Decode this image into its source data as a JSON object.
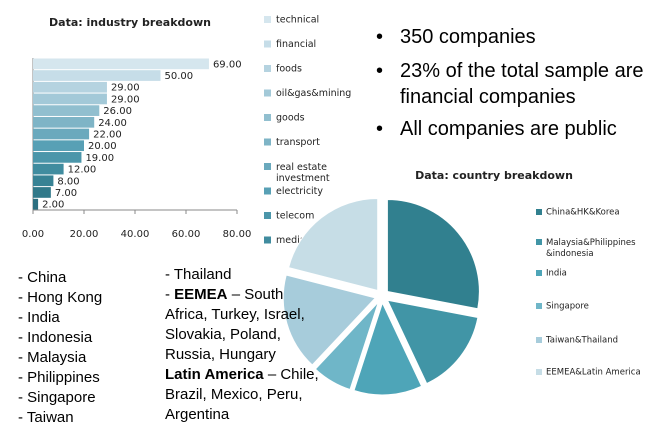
{
  "bullets": [
    "350 companies",
    "23% of the total sample are financial companies",
    "All companies are public"
  ],
  "regions_left": [
    "- China",
    "- Hong Kong",
    "- India",
    "- Indonesia",
    "- Malaysia",
    "- Philippines",
    "- Singapore",
    "- Taiwan"
  ],
  "regions_right": [
    {
      "text": "- Thailand"
    },
    {
      "prefix": "-",
      "bold": "EEMEA",
      "text": "– South Africa, Turkey, Israel, Slovakia, Poland, Russia, Hungary"
    },
    {
      "bold": "Latin America",
      "text": "– Chile, Brazil, Mexico, Peru, Argentina"
    }
  ],
  "chart_data": [
    {
      "type": "hbar",
      "title": "Data: industry breakdown",
      "categories": [
        null,
        null,
        null,
        null,
        null,
        null,
        null,
        null,
        null,
        null,
        null,
        null,
        null
      ],
      "values": [
        69,
        50,
        29,
        29,
        26,
        24,
        22,
        20,
        19,
        12,
        8,
        7,
        2
      ],
      "value_labels": [
        "69.00",
        "50.00",
        "29.00",
        "29.00",
        "26.00",
        "24.00",
        "22.00",
        "20.00",
        "19.00",
        "12.00",
        "8.00",
        "7.00",
        "2.00"
      ],
      "colors": [
        "#d5e6ee",
        "#c6dde8",
        "#b5d3e0",
        "#a3c9d8",
        "#91bfcf",
        "#7eb4c6",
        "#6aa9bd",
        "#58a0b5",
        "#4b96aa",
        "#408c9f",
        "#378294",
        "#31798a",
        "#2c6f80"
      ],
      "xlim": [
        0,
        80
      ],
      "xticks": [
        {
          "value": 0,
          "label": "0.00"
        },
        {
          "value": 20,
          "label": "20.00"
        },
        {
          "value": 40,
          "label": "40.00"
        },
        {
          "value": 60,
          "label": "60.00"
        },
        {
          "value": 80,
          "label": "80.00"
        }
      ],
      "legend": [
        "technical",
        "financial",
        "foods",
        "oil&gas&mining",
        "goods",
        "transport",
        "real estate investment",
        "electricity",
        "telecom",
        "media"
      ],
      "legend_colors": [
        "#d5e6ee",
        "#c6dde8",
        "#b5d3e0",
        "#a3c9d8",
        "#91bfcf",
        "#7eb4c6",
        "#6aa9bd",
        "#58a0b5",
        "#4b96aa",
        "#408c9f"
      ]
    },
    {
      "type": "pie",
      "title": "Data: country breakdown",
      "categories": [
        "China&HK&Korea",
        "Malaysia&Philippines &indonesia",
        "India",
        "Singapore",
        "Taiwan&Thailand",
        "EEMEA&Latin America"
      ],
      "values": [
        28,
        15,
        12,
        7,
        17,
        21
      ],
      "colors": [
        "#31808f",
        "#4195a6",
        "#4ea5b8",
        "#6fb6c8",
        "#a7ccdb",
        "#c6dde6"
      ]
    }
  ]
}
